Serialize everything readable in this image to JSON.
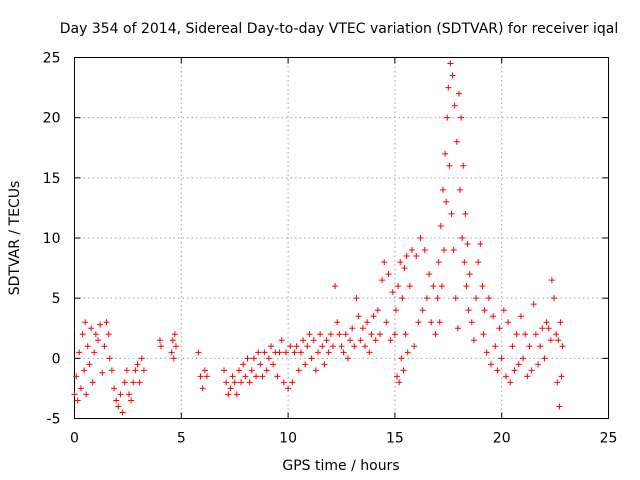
{
  "chart_data": {
    "type": "scatter",
    "title": "Day 354 of 2014, Sidereal Day-to-day VTEC variation (SDTVAR) for receiver iqal",
    "xlabel": "GPS time / hours",
    "ylabel": "SDTVAR / TECUs",
    "xlim": [
      0,
      25
    ],
    "ylim": [
      -5,
      25
    ],
    "xticks": [
      "0",
      "5",
      "10",
      "15",
      "20",
      "25"
    ],
    "yticks": [
      "-5",
      "0",
      "5",
      "10",
      "15",
      "20",
      "25"
    ],
    "grid": true,
    "marker": "+",
    "color": "#ff0000",
    "series": [
      {
        "name": "SDTVAR",
        "points": [
          [
            0.0,
            -3.0
          ],
          [
            0.08,
            -1.5
          ],
          [
            0.15,
            -3.5
          ],
          [
            0.22,
            0.5
          ],
          [
            0.3,
            -2.5
          ],
          [
            0.38,
            2.0
          ],
          [
            0.45,
            -1.0
          ],
          [
            0.5,
            3.0
          ],
          [
            0.55,
            -3.0
          ],
          [
            0.62,
            1.0
          ],
          [
            0.7,
            -0.5
          ],
          [
            0.78,
            2.5
          ],
          [
            0.85,
            -2.0
          ],
          [
            0.92,
            0.5
          ],
          [
            1.0,
            2.0
          ],
          [
            1.1,
            1.5
          ],
          [
            1.2,
            2.8
          ],
          [
            1.3,
            -1.2
          ],
          [
            1.4,
            1.0
          ],
          [
            1.5,
            3.0
          ],
          [
            1.6,
            2.0
          ],
          [
            1.65,
            0.0
          ],
          [
            1.75,
            -1.0
          ],
          [
            1.85,
            -2.5
          ],
          [
            1.95,
            -3.5
          ],
          [
            2.05,
            -4.0
          ],
          [
            2.15,
            -3.0
          ],
          [
            2.25,
            -4.5
          ],
          [
            2.35,
            -2.0
          ],
          [
            2.45,
            -1.0
          ],
          [
            2.55,
            -3.0
          ],
          [
            2.65,
            -3.5
          ],
          [
            2.75,
            -2.0
          ],
          [
            2.85,
            -1.0
          ],
          [
            2.95,
            -0.5
          ],
          [
            3.05,
            -2.0
          ],
          [
            3.15,
            0.0
          ],
          [
            3.25,
            -1.0
          ],
          [
            4.0,
            1.5
          ],
          [
            4.05,
            1.0
          ],
          [
            4.55,
            0.5
          ],
          [
            4.6,
            1.5
          ],
          [
            4.65,
            0.0
          ],
          [
            4.7,
            2.0
          ],
          [
            4.75,
            1.0
          ],
          [
            5.8,
            0.5
          ],
          [
            5.9,
            -1.5
          ],
          [
            6.0,
            -2.5
          ],
          [
            6.1,
            -1.0
          ],
          [
            6.2,
            -1.5
          ],
          [
            7.0,
            -1.0
          ],
          [
            7.1,
            -2.0
          ],
          [
            7.2,
            -3.0
          ],
          [
            7.3,
            -2.5
          ],
          [
            7.4,
            -1.5
          ],
          [
            7.5,
            -2.0
          ],
          [
            7.6,
            -3.0
          ],
          [
            7.7,
            -1.0
          ],
          [
            7.8,
            -2.0
          ],
          [
            7.9,
            -0.5
          ],
          [
            8.0,
            -1.5
          ],
          [
            8.1,
            0.0
          ],
          [
            8.2,
            -2.0
          ],
          [
            8.3,
            -1.0
          ],
          [
            8.4,
            0.0
          ],
          [
            8.5,
            -1.5
          ],
          [
            8.6,
            0.5
          ],
          [
            8.7,
            -0.5
          ],
          [
            8.8,
            -1.5
          ],
          [
            8.9,
            0.5
          ],
          [
            9.0,
            -1.0
          ],
          [
            9.1,
            0.0
          ],
          [
            9.2,
            1.0
          ],
          [
            9.3,
            -0.5
          ],
          [
            9.4,
            0.5
          ],
          [
            9.5,
            -1.5
          ],
          [
            9.6,
            0.5
          ],
          [
            9.7,
            1.5
          ],
          [
            9.8,
            -2.0
          ],
          [
            9.9,
            0.5
          ],
          [
            10.0,
            -2.5
          ],
          [
            10.1,
            1.0
          ],
          [
            10.2,
            -2.0
          ],
          [
            10.3,
            0.5
          ],
          [
            10.4,
            1.0
          ],
          [
            10.5,
            -1.0
          ],
          [
            10.6,
            0.5
          ],
          [
            10.7,
            1.5
          ],
          [
            10.8,
            -0.5
          ],
          [
            10.9,
            1.0
          ],
          [
            11.0,
            2.0
          ],
          [
            11.1,
            0.0
          ],
          [
            11.2,
            1.5
          ],
          [
            11.3,
            -1.0
          ],
          [
            11.4,
            0.5
          ],
          [
            11.5,
            2.0
          ],
          [
            11.6,
            1.0
          ],
          [
            11.7,
            -0.5
          ],
          [
            11.8,
            1.5
          ],
          [
            11.9,
            0.5
          ],
          [
            12.0,
            2.0
          ],
          [
            12.1,
            1.0
          ],
          [
            12.2,
            6.0
          ],
          [
            12.3,
            3.0
          ],
          [
            12.4,
            2.0
          ],
          [
            12.5,
            1.0
          ],
          [
            12.6,
            0.5
          ],
          [
            12.7,
            2.0
          ],
          [
            12.8,
            0.0
          ],
          [
            12.9,
            1.5
          ],
          [
            13.0,
            2.5
          ],
          [
            13.1,
            1.0
          ],
          [
            13.2,
            5.0
          ],
          [
            13.3,
            3.5
          ],
          [
            13.4,
            1.5
          ],
          [
            13.5,
            2.5
          ],
          [
            13.6,
            1.0
          ],
          [
            13.7,
            3.0
          ],
          [
            13.8,
            0.5
          ],
          [
            13.9,
            2.0
          ],
          [
            14.0,
            3.5
          ],
          [
            14.1,
            1.5
          ],
          [
            14.2,
            4.0
          ],
          [
            14.3,
            2.0
          ],
          [
            14.4,
            6.5
          ],
          [
            14.5,
            8.0
          ],
          [
            14.6,
            3.0
          ],
          [
            14.7,
            7.0
          ],
          [
            14.8,
            1.5
          ],
          [
            14.9,
            5.5
          ],
          [
            15.0,
            2.0
          ],
          [
            15.05,
            4.0
          ],
          [
            15.1,
            -1.5
          ],
          [
            15.15,
            6.0
          ],
          [
            15.2,
            -2.0
          ],
          [
            15.25,
            8.0
          ],
          [
            15.3,
            0.0
          ],
          [
            15.35,
            5.0
          ],
          [
            15.4,
            -1.0
          ],
          [
            15.45,
            7.5
          ],
          [
            15.5,
            2.0
          ],
          [
            15.55,
            8.5
          ],
          [
            15.6,
            0.5
          ],
          [
            15.7,
            6.0
          ],
          [
            15.8,
            9.0
          ],
          [
            15.9,
            1.0
          ],
          [
            16.0,
            8.5
          ],
          [
            16.1,
            3.0
          ],
          [
            16.2,
            10.0
          ],
          [
            16.3,
            4.0
          ],
          [
            16.4,
            9.0
          ],
          [
            16.5,
            5.0
          ],
          [
            16.6,
            7.0
          ],
          [
            16.7,
            3.0
          ],
          [
            16.8,
            6.0
          ],
          [
            16.9,
            2.0
          ],
          [
            17.0,
            5.0
          ],
          [
            17.05,
            8.0
          ],
          [
            17.1,
            3.0
          ],
          [
            17.15,
            11.0
          ],
          [
            17.2,
            6.0
          ],
          [
            17.25,
            14.0
          ],
          [
            17.3,
            9.0
          ],
          [
            17.35,
            17.0
          ],
          [
            17.4,
            13.0
          ],
          [
            17.45,
            20.0
          ],
          [
            17.5,
            22.5
          ],
          [
            17.55,
            16.0
          ],
          [
            17.6,
            24.5
          ],
          [
            17.65,
            12.0
          ],
          [
            17.7,
            23.5
          ],
          [
            17.75,
            9.0
          ],
          [
            17.8,
            21.0
          ],
          [
            17.85,
            5.0
          ],
          [
            17.9,
            18.0
          ],
          [
            17.95,
            2.5
          ],
          [
            18.0,
            22.0
          ],
          [
            18.05,
            14.0
          ],
          [
            18.1,
            20.0
          ],
          [
            18.15,
            10.0
          ],
          [
            18.2,
            16.0
          ],
          [
            18.25,
            8.0
          ],
          [
            18.3,
            12.0
          ],
          [
            18.35,
            6.0
          ],
          [
            18.4,
            9.5
          ],
          [
            18.45,
            4.0
          ],
          [
            18.5,
            7.0
          ],
          [
            18.6,
            3.0
          ],
          [
            18.7,
            1.5
          ],
          [
            18.8,
            5.0
          ],
          [
            18.9,
            8.0
          ],
          [
            19.0,
            9.5
          ],
          [
            19.1,
            6.0
          ],
          [
            19.15,
            2.0
          ],
          [
            19.2,
            4.0
          ],
          [
            19.3,
            0.5
          ],
          [
            19.4,
            5.0
          ],
          [
            19.5,
            -0.5
          ],
          [
            19.6,
            3.5
          ],
          [
            19.7,
            1.0
          ],
          [
            19.8,
            -1.0
          ],
          [
            19.9,
            2.5
          ],
          [
            20.0,
            0.0
          ],
          [
            20.1,
            4.0
          ],
          [
            20.2,
            -1.5
          ],
          [
            20.3,
            3.0
          ],
          [
            20.4,
            -2.0
          ],
          [
            20.5,
            1.0
          ],
          [
            20.6,
            -1.0
          ],
          [
            20.7,
            2.0
          ],
          [
            20.8,
            -0.5
          ],
          [
            20.9,
            3.5
          ],
          [
            21.0,
            0.0
          ],
          [
            21.1,
            2.0
          ],
          [
            21.2,
            -1.5
          ],
          [
            21.3,
            1.0
          ],
          [
            21.4,
            -1.0
          ],
          [
            21.5,
            4.5
          ],
          [
            21.6,
            2.0
          ],
          [
            21.7,
            -0.5
          ],
          [
            21.8,
            1.0
          ],
          [
            21.9,
            2.5
          ],
          [
            22.0,
            0.0
          ],
          [
            22.1,
            3.0
          ],
          [
            22.2,
            2.5
          ],
          [
            22.3,
            1.5
          ],
          [
            22.35,
            6.5
          ],
          [
            22.45,
            5.0
          ],
          [
            22.55,
            2.0
          ],
          [
            22.6,
            -2.0
          ],
          [
            22.65,
            1.5
          ],
          [
            22.7,
            -4.0
          ],
          [
            22.75,
            3.0
          ],
          [
            22.8,
            -1.5
          ],
          [
            22.85,
            1.0
          ]
        ]
      }
    ]
  }
}
